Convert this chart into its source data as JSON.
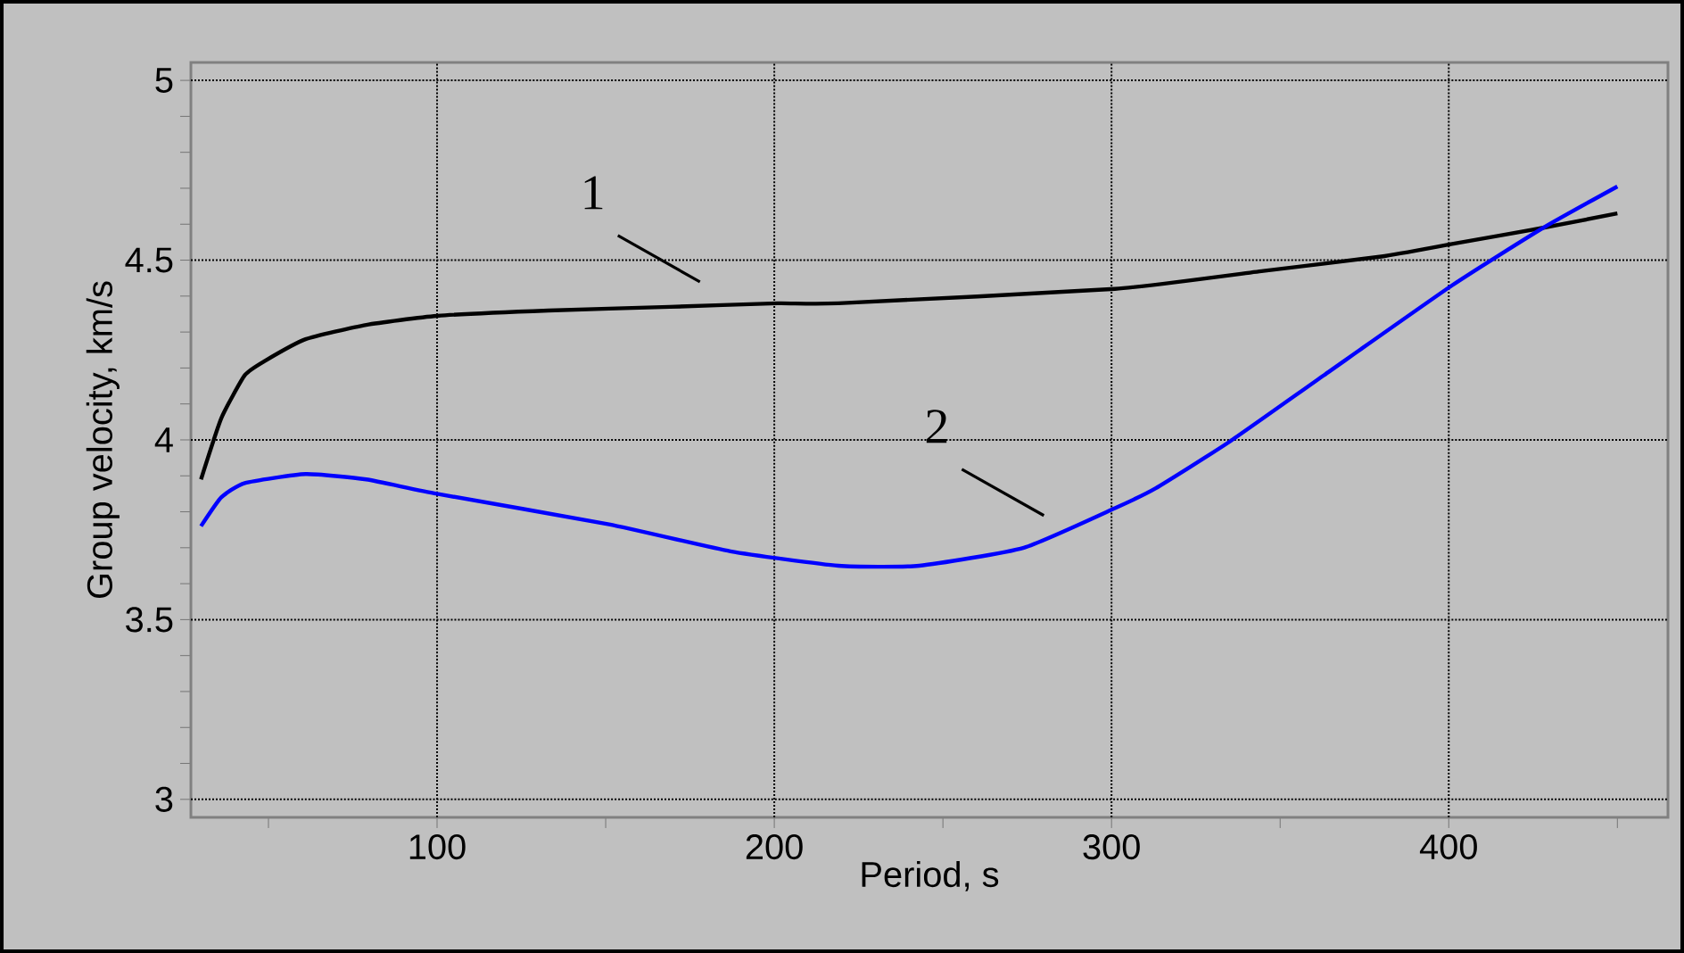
{
  "chart_data": {
    "type": "line",
    "xlabel": "Period, s",
    "ylabel": "Group velocity, km/s",
    "xlim": [
      27,
      465
    ],
    "ylim": [
      2.95,
      5.05
    ],
    "xticks": [
      {
        "value": 50,
        "label": null
      },
      100,
      {
        "value": 150,
        "label": null
      },
      200,
      {
        "value": 250,
        "label": null
      },
      300,
      {
        "value": 350,
        "label": null
      },
      400,
      {
        "value": 450,
        "label": null
      }
    ],
    "yticks": [
      3,
      {
        "value": 3.1,
        "label": null
      },
      {
        "value": 3.2,
        "label": null
      },
      {
        "value": 3.3,
        "label": null
      },
      {
        "value": 3.4,
        "label": null
      },
      3.5,
      {
        "value": 3.6,
        "label": null
      },
      {
        "value": 3.7,
        "label": null
      },
      {
        "value": 3.8,
        "label": null
      },
      {
        "value": 3.9,
        "label": null
      },
      4,
      {
        "value": 4.1,
        "label": null
      },
      {
        "value": 4.2,
        "label": null
      },
      {
        "value": 4.3,
        "label": null
      },
      {
        "value": 4.4,
        "label": null
      },
      4.5,
      {
        "value": 4.6,
        "label": null
      },
      {
        "value": 4.7,
        "label": null
      },
      {
        "value": 4.8,
        "label": null
      },
      {
        "value": 4.9,
        "label": null
      },
      5
    ],
    "grid": true,
    "marker": "none",
    "line_style": "solid",
    "series": [
      {
        "color": "#000000",
        "x": [
          30,
          36,
          43,
          49,
          61,
          79,
          100,
          133,
          169,
          201,
          219,
          301,
          345,
          380,
          401,
          428,
          450
        ],
        "values": [
          3.89,
          4.06,
          4.18,
          4.22,
          4.28,
          4.32,
          4.345,
          4.36,
          4.37,
          4.38,
          4.38,
          4.42,
          4.47,
          4.51,
          4.545,
          4.59,
          4.63
        ]
      },
      {
        "color": "#0000ff",
        "x": [
          30,
          36,
          43,
          61,
          79,
          100,
          151,
          187,
          219,
          243,
          274,
          301,
          313,
          335,
          363,
          401,
          428,
          450
        ],
        "values": [
          3.76,
          3.84,
          3.88,
          3.905,
          3.89,
          3.85,
          3.765,
          3.69,
          3.65,
          3.65,
          3.7,
          3.81,
          3.865,
          3.995,
          4.18,
          4.43,
          4.59,
          4.705
        ]
      }
    ],
    "annotations": [
      {
        "text": "1",
        "x": 179,
        "y": 4.37
      },
      {
        "text": "2",
        "x": 281,
        "y": 3.72
      }
    ]
  }
}
